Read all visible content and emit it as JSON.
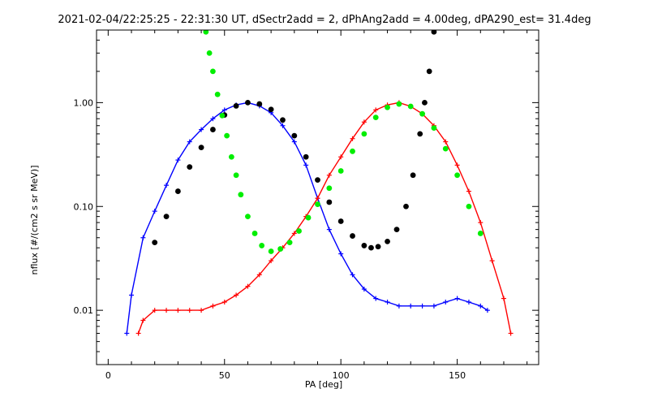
{
  "chart_data": {
    "type": "line",
    "title": "2021-02-04/22:25:25 - 22:31:30 UT, dSectr2add = 2, dPhAng2add = 4.00deg, dPA290_est=  31.4deg",
    "xlabel": "PA [deg]",
    "ylabel": "nflux [#/(cm2 s sr MeV)]",
    "x_scale": "linear",
    "y_scale": "log",
    "xlim": [
      -5,
      185
    ],
    "ylim": [
      0.003,
      5.0
    ],
    "x_ticks": [
      0,
      50,
      100,
      150
    ],
    "x_tick_labels": [
      "0",
      "50",
      "100",
      "150"
    ],
    "y_ticks": [
      0.01,
      0.1,
      1.0
    ],
    "y_tick_labels": [
      "0.01",
      "0.10",
      "1.00"
    ],
    "grid": false,
    "series": [
      {
        "color": "#0000ff",
        "style": "lines+plus",
        "points": [
          [
            8,
            0.006
          ],
          [
            10,
            0.014
          ],
          [
            15,
            0.05
          ],
          [
            20,
            0.09
          ],
          [
            25,
            0.16
          ],
          [
            30,
            0.28
          ],
          [
            35,
            0.42
          ],
          [
            40,
            0.55
          ],
          [
            45,
            0.7
          ],
          [
            50,
            0.85
          ],
          [
            55,
            0.95
          ],
          [
            60,
            1.0
          ],
          [
            65,
            0.93
          ],
          [
            70,
            0.8
          ],
          [
            75,
            0.6
          ],
          [
            80,
            0.42
          ],
          [
            85,
            0.25
          ],
          [
            90,
            0.12
          ],
          [
            95,
            0.06
          ],
          [
            100,
            0.035
          ],
          [
            105,
            0.022
          ],
          [
            110,
            0.016
          ],
          [
            115,
            0.013
          ],
          [
            120,
            0.012
          ],
          [
            125,
            0.011
          ],
          [
            130,
            0.011
          ],
          [
            135,
            0.011
          ],
          [
            140,
            0.011
          ],
          [
            145,
            0.012
          ],
          [
            150,
            0.013
          ],
          [
            155,
            0.012
          ],
          [
            160,
            0.011
          ],
          [
            163,
            0.01
          ]
        ]
      },
      {
        "color": "#ff0000",
        "style": "lines+plus",
        "points": [
          [
            13,
            0.006
          ],
          [
            15,
            0.008
          ],
          [
            20,
            0.01
          ],
          [
            25,
            0.01
          ],
          [
            30,
            0.01
          ],
          [
            35,
            0.01
          ],
          [
            40,
            0.01
          ],
          [
            45,
            0.011
          ],
          [
            50,
            0.012
          ],
          [
            55,
            0.014
          ],
          [
            60,
            0.017
          ],
          [
            65,
            0.022
          ],
          [
            70,
            0.03
          ],
          [
            75,
            0.04
          ],
          [
            80,
            0.055
          ],
          [
            85,
            0.08
          ],
          [
            90,
            0.12
          ],
          [
            95,
            0.2
          ],
          [
            100,
            0.3
          ],
          [
            105,
            0.45
          ],
          [
            110,
            0.65
          ],
          [
            115,
            0.85
          ],
          [
            120,
            0.95
          ],
          [
            125,
            1.0
          ],
          [
            130,
            0.92
          ],
          [
            135,
            0.78
          ],
          [
            140,
            0.6
          ],
          [
            145,
            0.42
          ],
          [
            150,
            0.25
          ],
          [
            155,
            0.14
          ],
          [
            160,
            0.07
          ],
          [
            165,
            0.03
          ],
          [
            170,
            0.013
          ],
          [
            173,
            0.006
          ]
        ]
      },
      {
        "color": "#000000",
        "style": "dots",
        "points": [
          [
            20,
            0.045
          ],
          [
            25,
            0.08
          ],
          [
            30,
            0.14
          ],
          [
            35,
            0.24
          ],
          [
            40,
            0.37
          ],
          [
            45,
            0.55
          ],
          [
            50,
            0.76
          ],
          [
            55,
            0.93
          ],
          [
            60,
            1.0
          ],
          [
            65,
            0.97
          ],
          [
            70,
            0.86
          ],
          [
            75,
            0.68
          ],
          [
            80,
            0.48
          ],
          [
            85,
            0.3
          ],
          [
            90,
            0.18
          ],
          [
            95,
            0.11
          ],
          [
            100,
            0.072
          ],
          [
            105,
            0.052
          ],
          [
            110,
            0.042
          ],
          [
            113,
            0.04
          ],
          [
            116,
            0.041
          ],
          [
            120,
            0.046
          ],
          [
            124,
            0.06
          ],
          [
            128,
            0.1
          ],
          [
            131,
            0.2
          ],
          [
            134,
            0.5
          ],
          [
            136,
            1.0
          ],
          [
            138,
            2.0
          ],
          [
            140,
            4.8
          ]
        ]
      },
      {
        "color": "#00ee00",
        "style": "dots",
        "points": [
          [
            42,
            4.8
          ],
          [
            43.5,
            3.0
          ],
          [
            45,
            2.0
          ],
          [
            47,
            1.2
          ],
          [
            49,
            0.75
          ],
          [
            51,
            0.48
          ],
          [
            53,
            0.3
          ],
          [
            55,
            0.2
          ],
          [
            57,
            0.13
          ],
          [
            60,
            0.08
          ],
          [
            63,
            0.055
          ],
          [
            66,
            0.042
          ],
          [
            70,
            0.037
          ],
          [
            74,
            0.039
          ],
          [
            78,
            0.045
          ],
          [
            82,
            0.058
          ],
          [
            86,
            0.078
          ],
          [
            90,
            0.105
          ],
          [
            95,
            0.15
          ],
          [
            100,
            0.22
          ],
          [
            105,
            0.34
          ],
          [
            110,
            0.5
          ],
          [
            115,
            0.72
          ],
          [
            120,
            0.9
          ],
          [
            125,
            0.97
          ],
          [
            130,
            0.92
          ],
          [
            135,
            0.78
          ],
          [
            140,
            0.57
          ],
          [
            145,
            0.36
          ],
          [
            150,
            0.2
          ],
          [
            155,
            0.1
          ],
          [
            160,
            0.055
          ]
        ]
      }
    ]
  }
}
